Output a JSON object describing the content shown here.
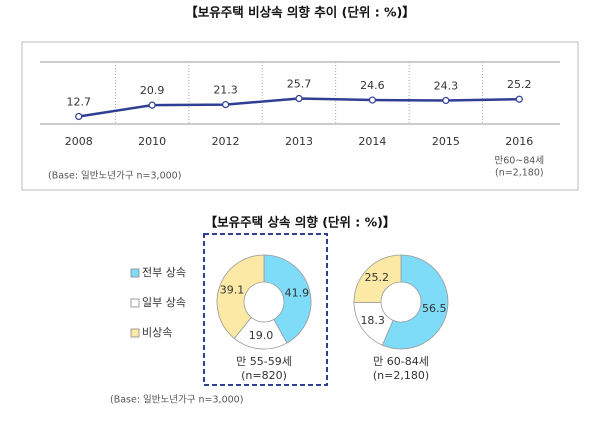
{
  "chart_data": [
    {
      "type": "line",
      "title": "【보유주택 비상속 의향 추이 (단위 : %)】",
      "categories": [
        "2008",
        "2010",
        "2012",
        "2013",
        "2014",
        "2015",
        "2016"
      ],
      "values": [
        12.7,
        20.9,
        21.3,
        25.7,
        24.6,
        24.3,
        25.2
      ],
      "color": "#2e3f94",
      "ylim": [
        0,
        50
      ],
      "category_note": [
        "만60~84세",
        "(n=2,180)"
      ],
      "base_note": "(Base: 일반노년가구 n=3,000)"
    },
    {
      "type": "donut",
      "title": "【보유주택 상속 의향 (단위 : %)】",
      "categories": [
        "전부 상속",
        "일부 상속",
        "비상속"
      ],
      "colors": [
        "#7fdcf8",
        "#ffffff",
        "#fde9a6"
      ],
      "series": [
        {
          "name": "만 55-59세",
          "sample": "(n=820)",
          "values": [
            41.9,
            19.0,
            39.1
          ],
          "value_labels": [
            "41.9",
            "19.0",
            "39.1"
          ]
        },
        {
          "name": "만 60-84세",
          "sample": "(n=2,180)",
          "values": [
            56.5,
            18.3,
            25.2
          ],
          "value_labels": [
            "56.5",
            "18.3",
            "25.2"
          ]
        }
      ],
      "base_note": "(Base: 일반노년가구 n=3,000)"
    }
  ]
}
